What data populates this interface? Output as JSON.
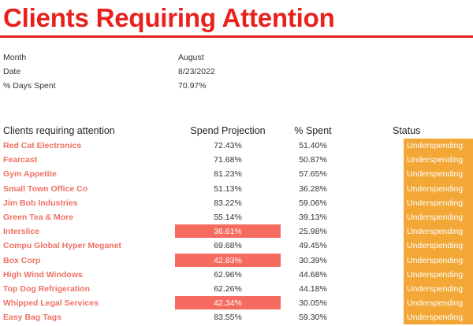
{
  "header": {
    "title": "Clients Requiring Attention"
  },
  "meta": [
    {
      "label": "Month",
      "value": "August"
    },
    {
      "label": "Date",
      "value": "8/23/2022"
    },
    {
      "label": "% Days Spent",
      "value": "70.97%"
    }
  ],
  "table": {
    "columns": [
      "Clients requiring attention",
      "Spend Projection",
      "% Spent",
      "Status"
    ],
    "rows": [
      {
        "client": "Red Cat Electronics",
        "projection": "72.43%",
        "spent": "51.40%",
        "status": "Underspending",
        "flag": false
      },
      {
        "client": "Fearcast",
        "projection": "71.68%",
        "spent": "50.87%",
        "status": "Underspending",
        "flag": false
      },
      {
        "client": "Gym Appetite",
        "projection": "81.23%",
        "spent": "57.65%",
        "status": "Underspending",
        "flag": false
      },
      {
        "client": "Small Town Office Co",
        "projection": "51.13%",
        "spent": "36.28%",
        "status": "Underspending",
        "flag": false
      },
      {
        "client": "Jim Bob Industries",
        "projection": "83.22%",
        "spent": "59.06%",
        "status": "Underspending",
        "flag": false
      },
      {
        "client": "Green Tea & More",
        "projection": "55.14%",
        "spent": "39.13%",
        "status": "Underspending",
        "flag": false
      },
      {
        "client": "Interslice",
        "projection": "36.61%",
        "spent": "25.98%",
        "status": "Underspending",
        "flag": true
      },
      {
        "client": "Compu Global Hyper Meganet",
        "projection": "69.68%",
        "spent": "49.45%",
        "status": "Underspending",
        "flag": false
      },
      {
        "client": "Box Corp",
        "projection": "42.83%",
        "spent": "30.39%",
        "status": "Underspending",
        "flag": true
      },
      {
        "client": "High Wind Windows",
        "projection": "62.96%",
        "spent": "44.68%",
        "status": "Underspending",
        "flag": false
      },
      {
        "client": "Top Dog Refrigeration",
        "projection": "62.26%",
        "spent": "44.18%",
        "status": "Underspending",
        "flag": false
      },
      {
        "client": "Whipped Legal Services",
        "projection": "42.34%",
        "spent": "30.05%",
        "status": "Underspending",
        "flag": true
      },
      {
        "client": "Easy Bag Tags",
        "projection": "83.55%",
        "spent": "59.30%",
        "status": "Underspending",
        "flag": false
      }
    ]
  },
  "colors": {
    "title": "#e8211d",
    "client_text": "#ef7163",
    "flag_fill": "#f56b60",
    "status_fill": "#f2a736"
  }
}
